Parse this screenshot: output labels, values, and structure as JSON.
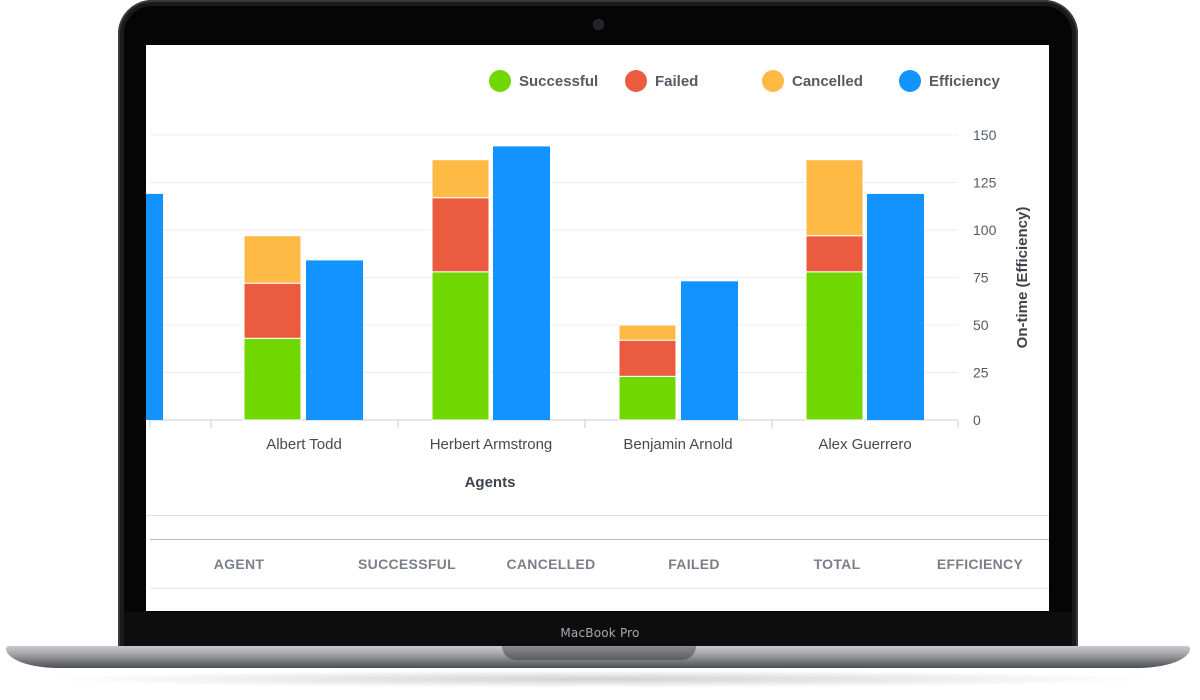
{
  "device": {
    "brand_label": "MacBook Pro"
  },
  "legend": [
    {
      "label": "Successful",
      "color": "#71d700"
    },
    {
      "label": "Failed",
      "color": "#ea5b3f"
    },
    {
      "label": "Cancelled",
      "color": "#ffba45"
    },
    {
      "label": "Efficiency",
      "color": "#1293ff"
    }
  ],
  "chart_data": {
    "type": "bar",
    "categories": [
      "",
      "Albert Todd",
      "Herbert Armstrong",
      "Benjamin Arnold",
      "Alex Guerrero"
    ],
    "series": [
      {
        "name": "Successful",
        "stack": "outcomes",
        "color": "#71d700",
        "values": [
          null,
          43,
          78,
          23,
          78
        ]
      },
      {
        "name": "Failed",
        "stack": "outcomes",
        "color": "#ea5b3f",
        "values": [
          null,
          29,
          39,
          19,
          19
        ]
      },
      {
        "name": "Cancelled",
        "stack": "outcomes",
        "color": "#ffba45",
        "values": [
          null,
          25,
          20,
          8,
          40
        ]
      },
      {
        "name": "Efficiency",
        "stack": "efficiency",
        "color": "#1293ff",
        "values": [
          119,
          84,
          144,
          73,
          119
        ]
      }
    ],
    "xlabel": "Agents",
    "ylabel": "On-time (Efficiency)",
    "ylim": [
      0,
      150
    ],
    "yticks": [
      0,
      25,
      50,
      75,
      100,
      125,
      150
    ],
    "y_axis_side": "right",
    "grid": true,
    "legend_position": "top-right"
  },
  "table": {
    "headers": [
      "AGENT",
      "SUCCESSFUL",
      "CANCELLED",
      "FAILED",
      "TOTAL",
      "EFFICIENCY"
    ]
  }
}
